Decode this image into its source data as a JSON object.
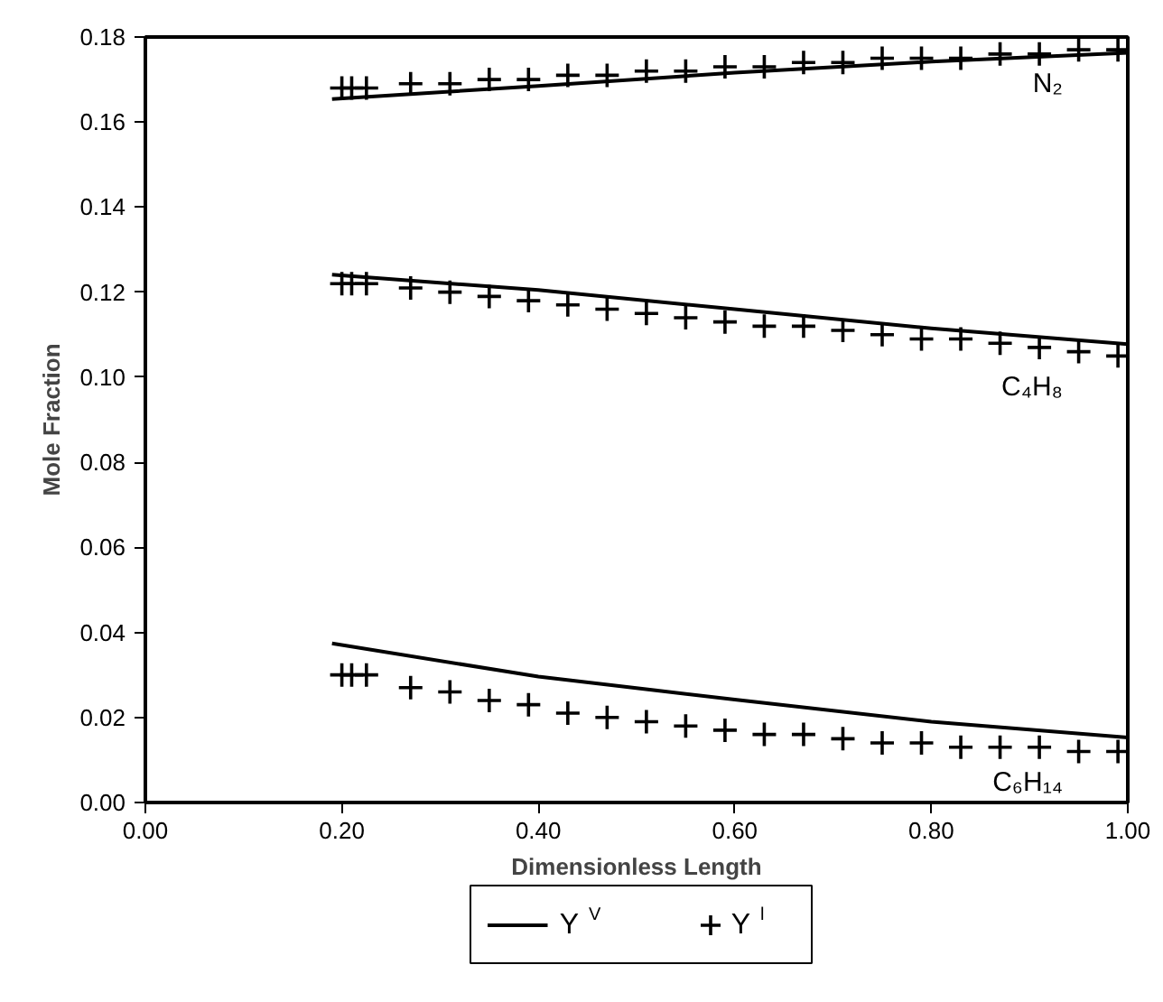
{
  "chart_data": {
    "type": "line",
    "xlabel": "Dimensionless Length",
    "ylabel": "Mole Fraction",
    "xlim": [
      0,
      1
    ],
    "ylim": [
      0,
      0.18
    ],
    "xticks": [
      {
        "value": 0,
        "label": "0.00"
      },
      {
        "value": 0.2,
        "label": "0.20"
      },
      {
        "value": 0.4,
        "label": "0.40"
      },
      {
        "value": 0.6,
        "label": "0.60"
      },
      {
        "value": 0.8,
        "label": "0.80"
      },
      {
        "value": 1,
        "label": "1.00"
      }
    ],
    "yticks": [
      {
        "value": 0,
        "label": "0.00"
      },
      {
        "value": 0.02,
        "label": "0.02"
      },
      {
        "value": 0.04,
        "label": "0.04"
      },
      {
        "value": 0.06,
        "label": "0.06"
      },
      {
        "value": 0.08,
        "label": "0.08"
      },
      {
        "value": 0.1,
        "label": "0.10"
      },
      {
        "value": 0.12,
        "label": "0.12"
      },
      {
        "value": 0.14,
        "label": "0.14"
      },
      {
        "value": 0.16,
        "label": "0.16"
      },
      {
        "value": 0.18,
        "label": "0.18"
      }
    ],
    "grid": false,
    "legend": "bottom",
    "series": [
      {
        "name": "Y$^{V}$",
        "color": "#000000",
        "line_style": "solid",
        "x": [
          0.19,
          0.4,
          0.6,
          0.8,
          1.0
        ],
        "values": [
          0.1654,
          0.1685,
          0.1716,
          0.1742,
          0.1763
        ]
      },
      {
        "name": "Y$^{l}$",
        "type": "scatter",
        "marker": "cross",
        "color": "#000000",
        "x": [
          0.2,
          0.21,
          0.225,
          0.27,
          0.31,
          0.35,
          0.39,
          0.43,
          0.47,
          0.51,
          0.55,
          0.59,
          0.63,
          0.67,
          0.71,
          0.75,
          0.79,
          0.83,
          0.87,
          0.91,
          0.95,
          0.99
        ],
        "values": [
          0.168,
          0.168,
          0.168,
          0.169,
          0.169,
          0.17,
          0.17,
          0.171,
          0.171,
          0.172,
          0.172,
          0.173,
          0.173,
          0.174,
          0.174,
          0.175,
          0.175,
          0.175,
          0.176,
          0.176,
          0.177,
          0.177
        ]
      },
      {
        "color": "#000000",
        "line_style": "solid",
        "x": [
          0.19,
          0.4,
          0.6,
          0.8,
          1.0
        ],
        "values": [
          0.1241,
          0.1205,
          0.116,
          0.1115,
          0.1078
        ]
      },
      {
        "type": "scatter",
        "marker": "cross",
        "color": "#000000",
        "x": [
          0.2,
          0.21,
          0.225,
          0.27,
          0.31,
          0.35,
          0.39,
          0.43,
          0.47,
          0.51,
          0.55,
          0.59,
          0.63,
          0.67,
          0.71,
          0.75,
          0.79,
          0.83,
          0.87,
          0.91,
          0.95,
          0.99
        ],
        "values": [
          0.122,
          0.122,
          0.122,
          0.121,
          0.12,
          0.119,
          0.118,
          0.117,
          0.116,
          0.115,
          0.114,
          0.113,
          0.112,
          0.112,
          0.111,
          0.11,
          0.109,
          0.109,
          0.108,
          0.107,
          0.106,
          0.105
        ]
      },
      {
        "color": "#000000",
        "line_style": "solid",
        "x": [
          0.19,
          0.4,
          0.6,
          0.8,
          1.0
        ],
        "values": [
          0.0374,
          0.0296,
          0.0242,
          0.019,
          0.0153
        ]
      },
      {
        "type": "scatter",
        "marker": "cross",
        "color": "#000000",
        "x": [
          0.2,
          0.21,
          0.225,
          0.27,
          0.31,
          0.35,
          0.39,
          0.43,
          0.47,
          0.51,
          0.55,
          0.59,
          0.63,
          0.67,
          0.71,
          0.75,
          0.79,
          0.83,
          0.87,
          0.91,
          0.95,
          0.99
        ],
        "values": [
          0.03,
          0.03,
          0.03,
          0.027,
          0.026,
          0.024,
          0.023,
          0.021,
          0.02,
          0.019,
          0.018,
          0.017,
          0.016,
          0.016,
          0.015,
          0.014,
          0.014,
          0.013,
          0.013,
          0.013,
          0.012,
          0.012
        ]
      }
    ],
    "annotations": [
      "N₂",
      "C₄H₈",
      "C₆H₁₄"
    ]
  }
}
